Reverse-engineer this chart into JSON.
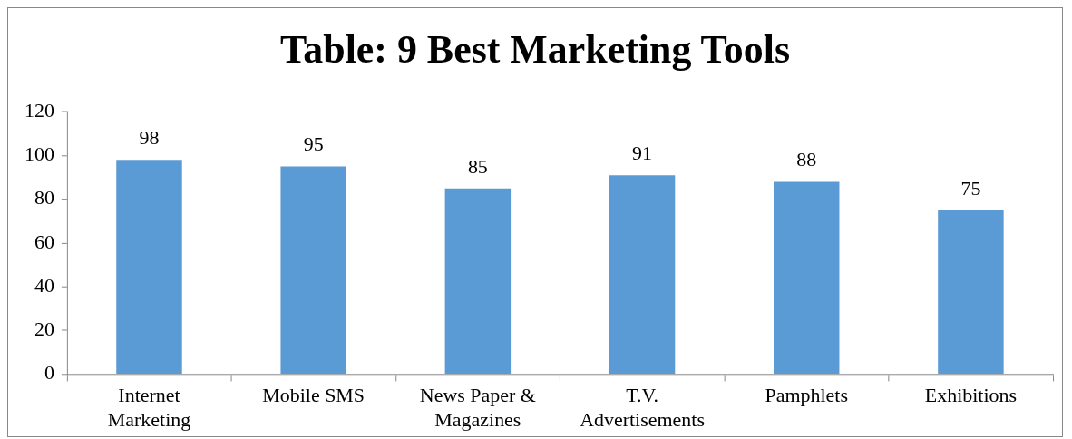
{
  "chart_data": {
    "type": "bar",
    "title": "Table: 9 Best Marketing Tools",
    "categories": [
      "Internet Marketing",
      "Mobile SMS",
      "News Paper & Magazines",
      "T.V. Advertisements",
      "Pamphlets",
      "Exhibitions"
    ],
    "values": [
      98,
      95,
      85,
      91,
      88,
      75
    ],
    "color": "#5b9bd5",
    "ylim": [
      0,
      120
    ],
    "yticks": [
      0,
      20,
      40,
      60,
      80,
      100,
      120
    ],
    "grid": false,
    "legend": false,
    "data_labels": true
  }
}
